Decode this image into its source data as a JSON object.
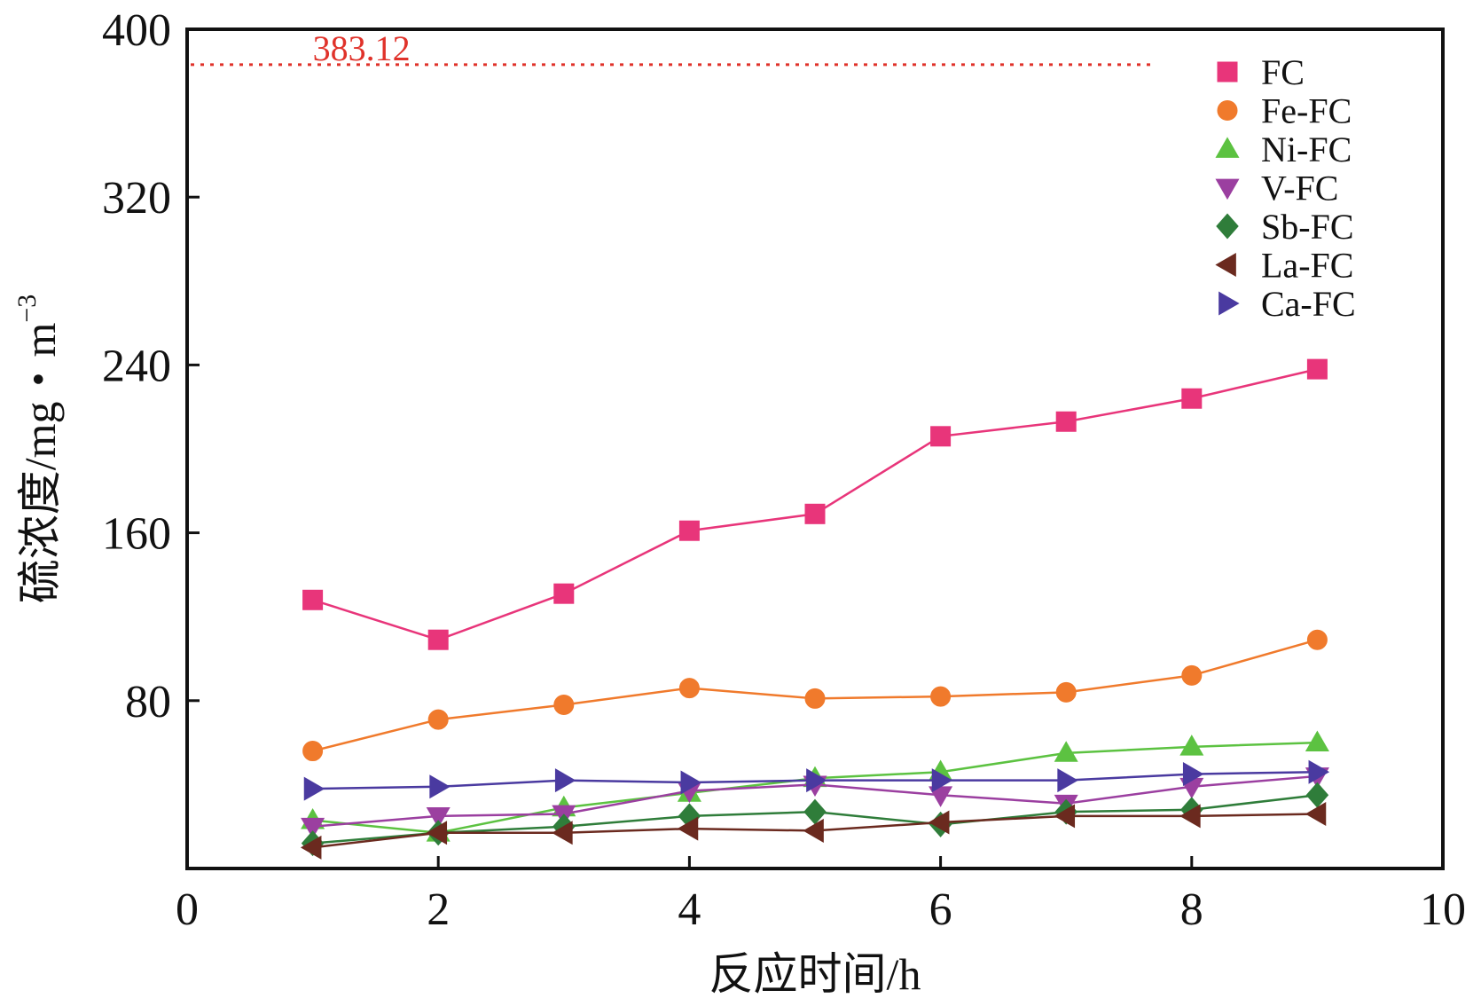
{
  "chart_data": {
    "type": "line",
    "title": "",
    "xlabel": "反应时间/h",
    "ylabel": "硫浓度/mg・m",
    "ylabel_superscript": "−3",
    "xlim": [
      0,
      10
    ],
    "ylim": [
      0,
      400
    ],
    "xticks": [
      "0",
      "2",
      "4",
      "6",
      "8",
      "10"
    ],
    "yticks": [
      "0",
      "80",
      "160",
      "240",
      "320",
      "400"
    ],
    "grid": false,
    "legend_position": "top-right",
    "reference_line": {
      "y": 383.12,
      "label": "383.12",
      "color": "#e0322a",
      "x_end": 7.7
    },
    "x": [
      1,
      2,
      3,
      4,
      5,
      6,
      7,
      8,
      9
    ],
    "series": [
      {
        "name": "FC",
        "marker": "square",
        "color": "#e8357a",
        "values": [
          128,
          109,
          131,
          161,
          169,
          206,
          213,
          224,
          238
        ]
      },
      {
        "name": "Fe-FC",
        "marker": "circle",
        "color": "#f07a2c",
        "values": [
          56,
          71,
          78,
          86,
          81,
          82,
          84,
          92,
          109
        ]
      },
      {
        "name": "Ni-FC",
        "marker": "triangle-up",
        "color": "#5cc241",
        "values": [
          23,
          17,
          29,
          36,
          43,
          46,
          55,
          58,
          60
        ]
      },
      {
        "name": "V-FC",
        "marker": "triangle-down",
        "color": "#9b3fa0",
        "values": [
          20,
          25,
          26,
          37,
          40,
          35,
          31,
          39,
          44
        ]
      },
      {
        "name": "Sb-FC",
        "marker": "diamond",
        "color": "#2f7d3a",
        "values": [
          12,
          17,
          20,
          25,
          27,
          21,
          27,
          28,
          35
        ]
      },
      {
        "name": "La-FC",
        "marker": "triangle-left",
        "color": "#6b2a1f",
        "values": [
          10,
          17,
          17,
          19,
          18,
          22,
          25,
          25,
          26
        ]
      },
      {
        "name": "Ca-FC",
        "marker": "triangle-right",
        "color": "#4a3aa0",
        "values": [
          38,
          39,
          42,
          41,
          42,
          42,
          42,
          45,
          46
        ]
      }
    ]
  }
}
